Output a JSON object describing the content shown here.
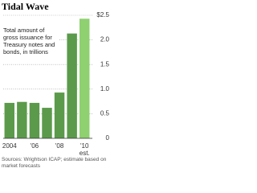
{
  "chart_data": {
    "type": "bar",
    "title": "Tidal Wave",
    "subtitle": "Total amount of gross issuance for Treasury notes and bonds, in trillions",
    "categories": [
      "2004",
      null,
      "'06",
      null,
      "'08",
      null,
      "'10"
    ],
    "values": [
      0.72,
      0.74,
      0.72,
      0.62,
      0.93,
      2.13,
      2.43
    ],
    "colors": [
      "#5b9a4b",
      "#5b9a4b",
      "#5b9a4b",
      "#5b9a4b",
      "#5b9a4b",
      "#5b9a4b",
      "#8fd070"
    ],
    "ylim": [
      0,
      2.5
    ],
    "yticks": [
      0,
      {
        "value": 0.5,
        "label": "0.5"
      },
      {
        "value": 1,
        "label": "1.0"
      },
      {
        "value": 1.5,
        "label": "1.5"
      },
      {
        "value": 2,
        "label": "2.0"
      },
      {
        "value": 2.5,
        "label": "$2.5"
      }
    ],
    "grid": true,
    "annotation": "est.",
    "source": "Sources: Wrightson ICAP; estimate based on market forecasts"
  }
}
